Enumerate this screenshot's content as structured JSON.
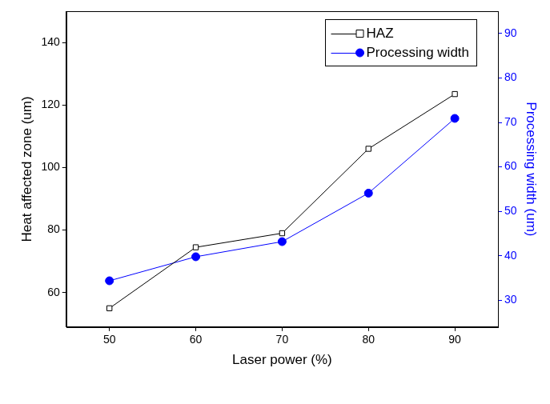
{
  "chart_data": {
    "type": "line",
    "x_label": "Laser power (%)",
    "y_label": "Heat affected zone (um)",
    "y2_label": "Processing width (um)",
    "x": [
      50,
      60,
      70,
      80,
      90
    ],
    "xlim": [
      45,
      95
    ],
    "xticks": [
      50,
      60,
      70,
      80,
      90
    ],
    "ylim": [
      49,
      150
    ],
    "yticks": [
      60,
      80,
      100,
      120,
      140
    ],
    "y2lim": [
      24,
      95
    ],
    "y2ticks": [
      30,
      40,
      50,
      60,
      70,
      80,
      90
    ],
    "grid": false,
    "legend": "upper right",
    "series": [
      {
        "name": "HAZ",
        "color": "#000000",
        "marker": "square",
        "values": [
          55,
          74.5,
          79,
          106,
          123.5
        ]
      },
      {
        "name": "Processing width",
        "color": "#0000ff",
        "marker": "circle",
        "axis": "y2",
        "values": [
          34.4,
          39.8,
          43.2,
          54.1,
          70.9
        ]
      }
    ]
  }
}
